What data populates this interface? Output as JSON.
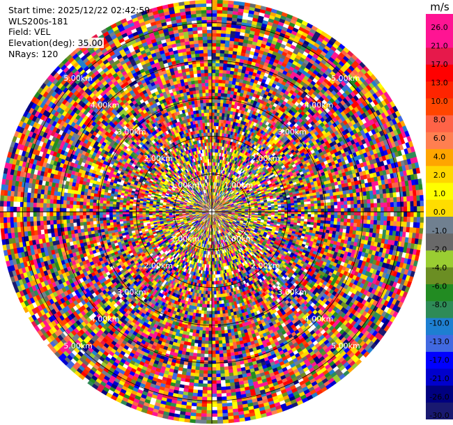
{
  "header": {
    "start_time": "Start time: 2025/12/22 02:42:59",
    "instrument": "WLS200s-181",
    "field": "Field: VEL",
    "elevation": "Elevation(deg): 35.00",
    "nrays": "NRays: 120"
  },
  "chart_data": {
    "type": "heatmap",
    "projection": "ppi-polar",
    "field": "VEL",
    "units": "m/s",
    "n_rays": 120,
    "elevation_deg": 35.0,
    "range_rings_km": [
      1,
      2,
      3,
      4,
      5
    ],
    "max_range_km": 5.6,
    "range_labels": [
      {
        "text": "1.00km",
        "ring": 1
      },
      {
        "text": "2.00km",
        "ring": 2
      },
      {
        "text": "3.00km",
        "ring": 3
      },
      {
        "text": "4.00km",
        "ring": 4
      },
      {
        "text": "5.00km",
        "ring": 5
      }
    ],
    "colorbar": {
      "title": "m/s",
      "ticks": [
        "26.0",
        "21.0",
        "17.0",
        "13.0",
        "10.0",
        "8.0",
        "6.0",
        "4.0",
        "2.0",
        "1.0",
        "0.0",
        "-1.0",
        "-2.0",
        "-4.0",
        "-6.0",
        "-8.0",
        "-10.0",
        "-13.0",
        "-17.0",
        "-21.0",
        "-26.0",
        "-30.0"
      ],
      "colors": [
        "#ff1493",
        "#ff1493",
        "#e6194b",
        "#ff0000",
        "#ff2400",
        "#ff4500",
        "#ff6347",
        "#ff7f50",
        "#ffa500",
        "#ffd700",
        "#ffff00",
        "#ffdd00",
        "#708090",
        "#696969",
        "#9acd32",
        "#6b8e23",
        "#228b22",
        "#2e8b57",
        "#1e7fd1",
        "#4169e1",
        "#0000ff",
        "#0000cd",
        "#000080",
        "#191970"
      ]
    }
  }
}
